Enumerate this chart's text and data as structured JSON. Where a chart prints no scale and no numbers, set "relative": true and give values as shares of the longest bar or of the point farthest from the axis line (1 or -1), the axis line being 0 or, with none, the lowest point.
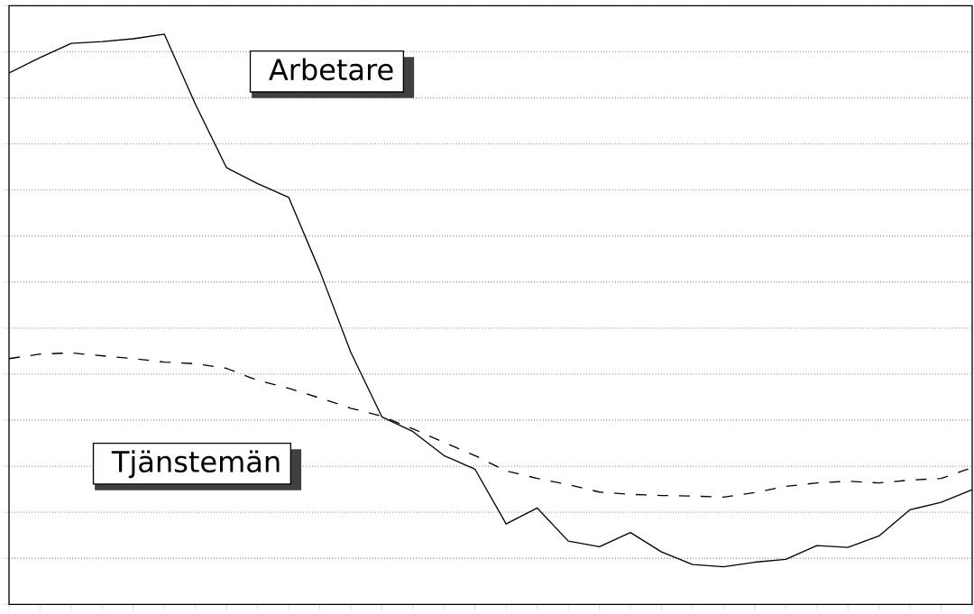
{
  "chart_data": {
    "type": "line",
    "relative": true,
    "grid": "y",
    "marker": "none",
    "categories": [
      null,
      null,
      null,
      null,
      null,
      null,
      null,
      null,
      null,
      null,
      null,
      null,
      null,
      null,
      null,
      null,
      null,
      null,
      null,
      null,
      null,
      null,
      null,
      null,
      null,
      null,
      null,
      null,
      null,
      null,
      null,
      null
    ],
    "series": [
      {
        "name": "Arbetare",
        "color": "#000000",
        "line_style": "solid",
        "values": [
          0.932,
          0.959,
          0.984,
          0.987,
          0.992,
          1,
          0.877,
          0.766,
          0.738,
          0.714,
          0.585,
          0.442,
          0.329,
          0.303,
          0.261,
          0.237,
          0.141,
          0.169,
          0.111,
          0.101,
          0.126,
          0.092,
          0.07,
          0.066,
          0.074,
          0.079,
          0.103,
          0.1,
          0.12,
          0.166,
          0.179,
          0.201
        ]
      },
      {
        "name": "Tjänstemän",
        "color": "#000000",
        "line_style": "dashed",
        "values": [
          0.431,
          0.439,
          0.441,
          0.436,
          0.431,
          0.425,
          0.422,
          0.414,
          0.393,
          0.379,
          0.362,
          0.344,
          0.33,
          0.308,
          0.284,
          0.261,
          0.234,
          0.221,
          0.21,
          0.197,
          0.193,
          0.191,
          0.19,
          0.188,
          0.196,
          0.207,
          0.213,
          0.216,
          0.213,
          0.218,
          0.221,
          0.24
        ]
      }
    ]
  }
}
